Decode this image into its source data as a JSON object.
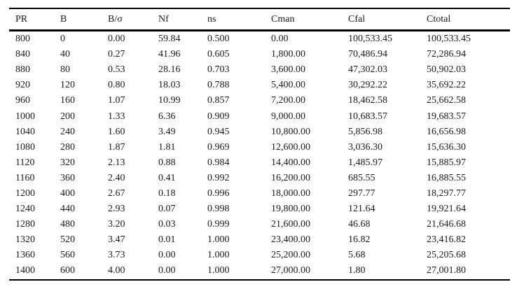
{
  "page": {
    "background": "#ffffff",
    "text_color": "#1a1a1a",
    "rule_color": "#000000"
  },
  "table": {
    "columns": [
      "PR",
      "B",
      "B/σ",
      "Nf",
      "ns",
      "Cman",
      "Cfal",
      "Ctotal"
    ],
    "rows": [
      [
        "800",
        "0",
        "0.00",
        "59.84",
        "0.500",
        "0.00",
        "100,533.45",
        "100,533.45"
      ],
      [
        "840",
        "40",
        "0.27",
        "41.96",
        "0.605",
        "1,800.00",
        "70,486.94",
        "72,286.94"
      ],
      [
        "880",
        "80",
        "0.53",
        "28.16",
        "0.703",
        "3,600.00",
        "47,302.03",
        "50,902.03"
      ],
      [
        "920",
        "120",
        "0.80",
        "18.03",
        "0.788",
        "5,400.00",
        "30,292.22",
        "35,692.22"
      ],
      [
        "960",
        "160",
        "1.07",
        "10.99",
        "0.857",
        "7,200.00",
        "18,462.58",
        "25,662.58"
      ],
      [
        "1000",
        "200",
        "1.33",
        "6.36",
        "0.909",
        "9,000.00",
        "10,683.57",
        "19,683.57"
      ],
      [
        "1040",
        "240",
        "1.60",
        "3.49",
        "0.945",
        "10,800.00",
        "5,856.98",
        "16,656.98"
      ],
      [
        "1080",
        "280",
        "1.87",
        "1.81",
        "0.969",
        "12,600.00",
        "3,036.30",
        "15,636.30"
      ],
      [
        "1120",
        "320",
        "2.13",
        "0.88",
        "0.984",
        "14,400.00",
        "1,485.97",
        "15,885.97"
      ],
      [
        "1160",
        "360",
        "2.40",
        "0.41",
        "0.992",
        "16,200.00",
        "685.55",
        "16,885.55"
      ],
      [
        "1200",
        "400",
        "2.67",
        "0.18",
        "0.996",
        "18,000.00",
        "297.77",
        "18,297.77"
      ],
      [
        "1240",
        "440",
        "2.93",
        "0.07",
        "0.998",
        "19,800.00",
        "121.64",
        "19,921.64"
      ],
      [
        "1280",
        "480",
        "3.20",
        "0.03",
        "0.999",
        "21,600.00",
        "46.68",
        "21,646.68"
      ],
      [
        "1320",
        "520",
        "3.47",
        "0.01",
        "1.000",
        "23,400.00",
        "16.82",
        "23,416.82"
      ],
      [
        "1360",
        "560",
        "3.73",
        "0.00",
        "1.000",
        "25,200.00",
        "5.68",
        "25,205.68"
      ],
      [
        "1400",
        "600",
        "4.00",
        "0.00",
        "1.000",
        "27,000.00",
        "1.80",
        "27,001.80"
      ]
    ]
  }
}
